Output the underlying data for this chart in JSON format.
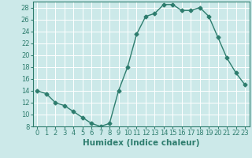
{
  "x": [
    0,
    1,
    2,
    3,
    4,
    5,
    6,
    7,
    8,
    9,
    10,
    11,
    12,
    13,
    14,
    15,
    16,
    17,
    18,
    19,
    20,
    21,
    22,
    23
  ],
  "y": [
    14,
    13.5,
    12,
    11.5,
    10.5,
    9.5,
    8.5,
    8,
    8.5,
    14,
    18,
    23.5,
    26.5,
    27,
    28.5,
    28.5,
    27.5,
    27.5,
    28,
    26.5,
    23,
    19.5,
    17,
    15
  ],
  "line_color": "#2e7d6e",
  "marker": "D",
  "marker_size": 2.5,
  "bg_color": "#cce9e9",
  "grid_color": "#ffffff",
  "xlabel": "Humidex (Indice chaleur)",
  "xlim": [
    -0.5,
    23.5
  ],
  "ylim": [
    8,
    29
  ],
  "yticks": [
    8,
    10,
    12,
    14,
    16,
    18,
    20,
    22,
    24,
    26,
    28
  ],
  "xticks": [
    0,
    1,
    2,
    3,
    4,
    5,
    6,
    7,
    8,
    9,
    10,
    11,
    12,
    13,
    14,
    15,
    16,
    17,
    18,
    19,
    20,
    21,
    22,
    23
  ],
  "tick_label_fontsize": 6,
  "xlabel_fontsize": 7.5,
  "line_width": 1.0
}
